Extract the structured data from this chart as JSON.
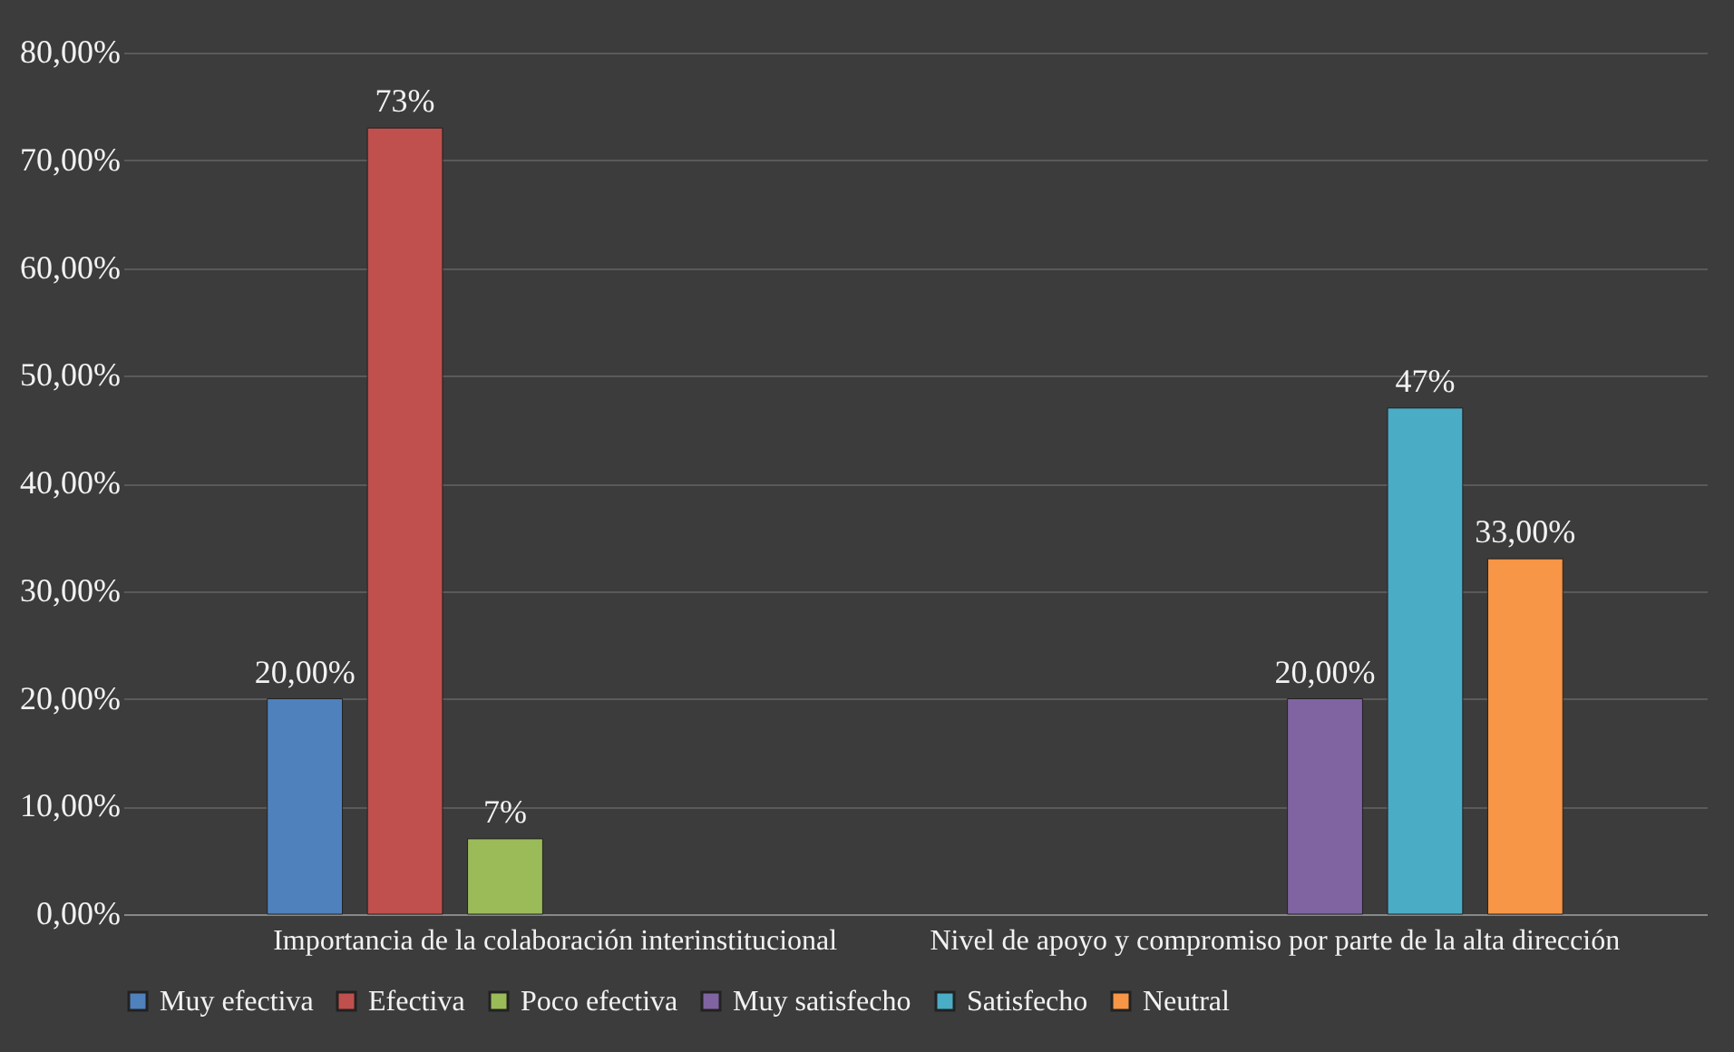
{
  "chart_data": {
    "type": "bar",
    "categories": [
      "Importancia de la colaboración interinstitucional",
      "Nivel de apoyo y compromiso por parte de la alta dirección"
    ],
    "series": [
      {
        "name": "Muy efectiva",
        "color": "#4f81bd",
        "values": [
          20,
          null
        ],
        "value_labels": [
          "20,00%",
          null
        ]
      },
      {
        "name": "Efectiva",
        "color": "#c0504d",
        "values": [
          73,
          null
        ],
        "value_labels": [
          "73%",
          null
        ]
      },
      {
        "name": "Poco efectiva",
        "color": "#9bbb59",
        "values": [
          7,
          null
        ],
        "value_labels": [
          "7%",
          null
        ]
      },
      {
        "name": "Muy satisfecho",
        "color": "#8064a2",
        "values": [
          null,
          20
        ],
        "value_labels": [
          null,
          "20,00%"
        ]
      },
      {
        "name": "Satisfecho",
        "color": "#4bacc6",
        "values": [
          null,
          47
        ],
        "value_labels": [
          null,
          "47%"
        ]
      },
      {
        "name": "Neutral",
        "color": "#f79646",
        "values": [
          null,
          33
        ],
        "value_labels": [
          null,
          "33,00%"
        ]
      }
    ],
    "ylim": [
      0,
      80
    ],
    "yticks": [
      {
        "value": 0,
        "label": "0,00%"
      },
      {
        "value": 10,
        "label": "10,00%"
      },
      {
        "value": 20,
        "label": "20,00%"
      },
      {
        "value": 30,
        "label": "30,00%"
      },
      {
        "value": 40,
        "label": "40,00%"
      },
      {
        "value": 50,
        "label": "50,00%"
      },
      {
        "value": 60,
        "label": "60,00%"
      },
      {
        "value": 70,
        "label": "70,00%"
      },
      {
        "value": 80,
        "label": "80,00%"
      }
    ],
    "grid": "y",
    "legend": "bottom"
  }
}
